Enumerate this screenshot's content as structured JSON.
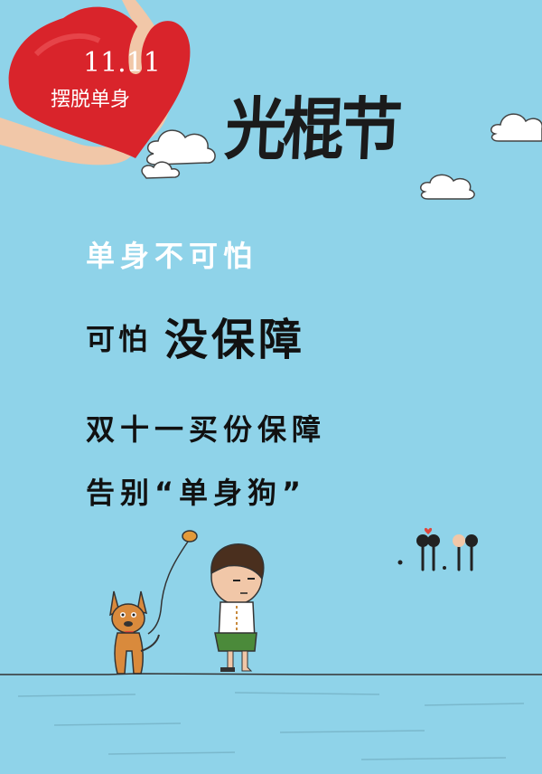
{
  "badge": {
    "date": "11.11",
    "subtitle": "摆脱单身"
  },
  "title": "光棍节",
  "lines": {
    "line1": "单身不可怕",
    "line2a": "可怕",
    "line2b": "没保障",
    "line3": "双十一买份保障",
    "line4": "告别“单身狗”"
  },
  "decoration": {
    "figures_label": "11.11"
  },
  "colors": {
    "background": "#8fd3e9",
    "heart": "#d9242b",
    "text": "#111111",
    "white_text": "#ffffff"
  }
}
